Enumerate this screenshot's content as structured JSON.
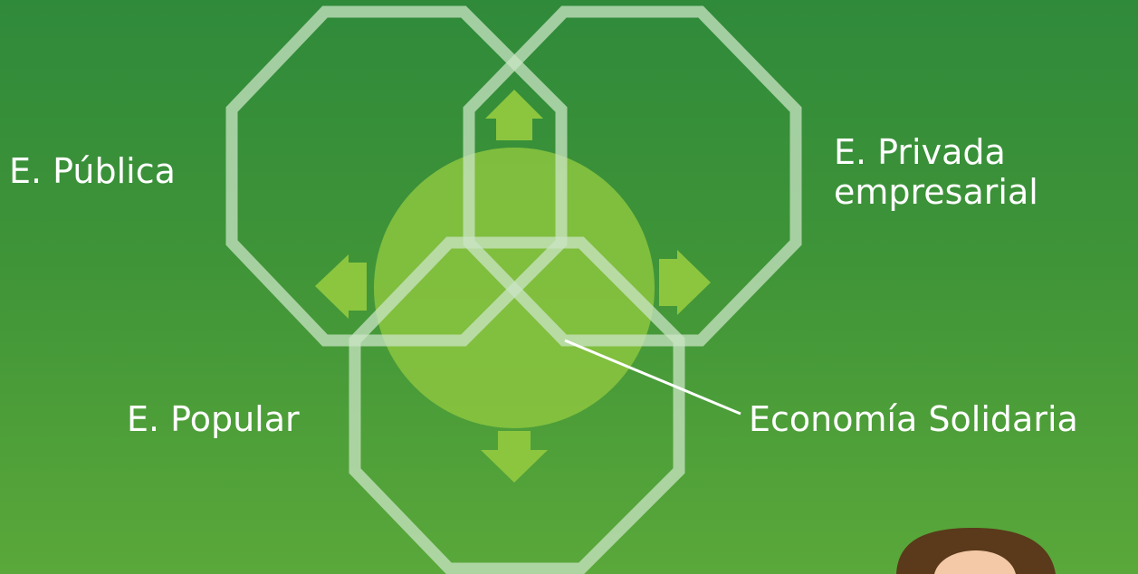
{
  "labels": {
    "publica": "E. Pública",
    "privada": "E. Privada\nempresarial",
    "popular": "E. Popular",
    "solidaria": "Economía Solidaria"
  },
  "colors": {
    "background_top": "#2f8a3a",
    "background_bottom": "#5aa83a",
    "octagon_stroke": "#c9e4c4",
    "circle_fill": "#8cc540",
    "arrow_fill": "#8cc63f",
    "text": "#ffffff",
    "hair": "#5a3a1a",
    "skin": "#f3c9a8"
  },
  "icons": {
    "up": "arrow-up-icon",
    "left": "arrow-left-icon",
    "right": "arrow-right-icon",
    "down": "arrow-down-icon"
  }
}
